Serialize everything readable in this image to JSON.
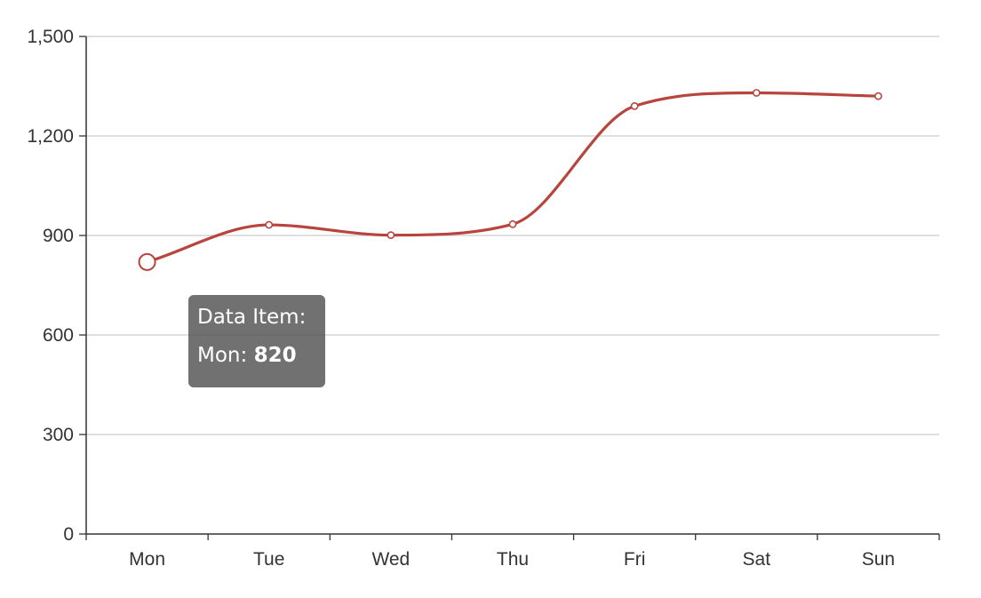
{
  "chart_data": {
    "type": "line",
    "smooth": true,
    "categories": [
      "Mon",
      "Tue",
      "Wed",
      "Thu",
      "Fri",
      "Sat",
      "Sun"
    ],
    "series": [
      {
        "values": [
          820,
          932,
          901,
          934,
          1290,
          1330,
          1320
        ]
      }
    ],
    "y_ticks": [
      "0",
      "300",
      "600",
      "900",
      "1,200",
      "1,500"
    ],
    "ylim": [
      0,
      1500
    ],
    "grid": true,
    "line_color": "#b7453e",
    "axis_color": "#333333",
    "grid_color": "#cccccc"
  },
  "tooltip": {
    "title": "Data Item:",
    "category": "Mon",
    "separator": ":",
    "value": "820",
    "background": "#585858",
    "text_color": "#ffffff"
  }
}
